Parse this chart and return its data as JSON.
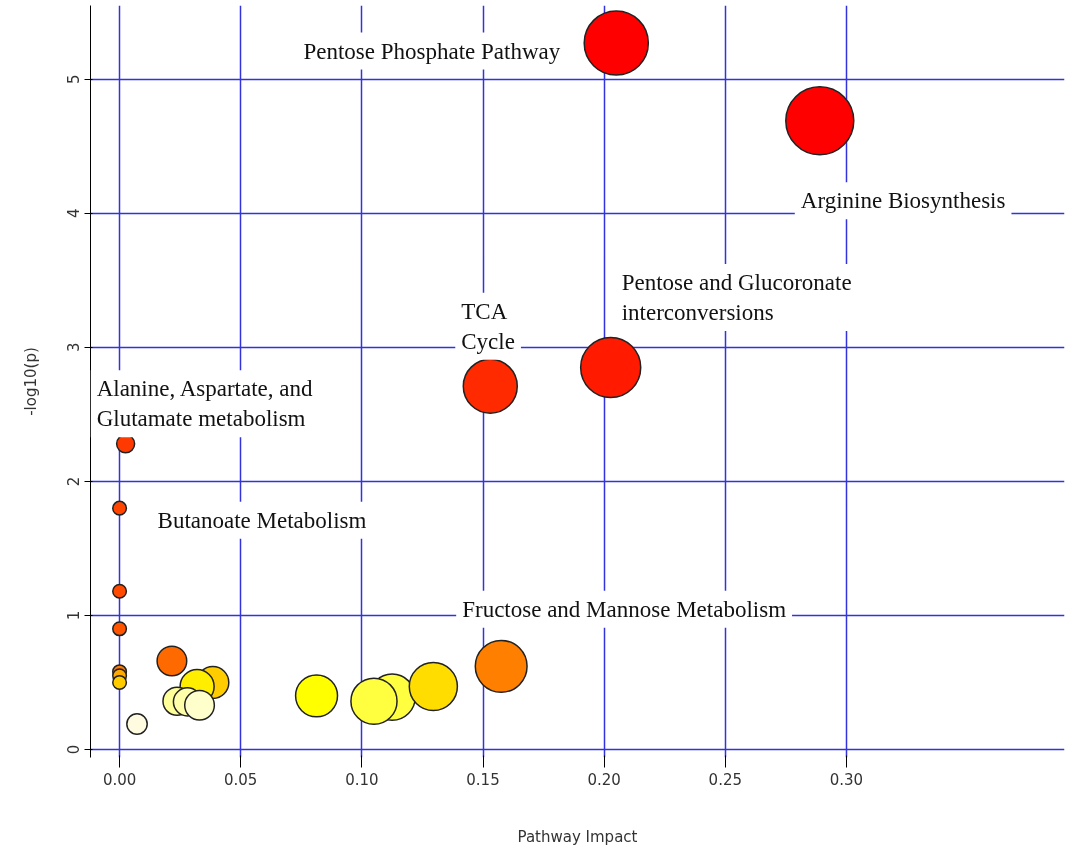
{
  "chart_data": {
    "type": "bubble",
    "xlabel": "Pathway Impact",
    "ylabel": "-log10(p)",
    "x": [
      0.205,
      0.289,
      0.2027,
      0.153,
      0.0025,
      0,
      0,
      0,
      0,
      0,
      0,
      0.0072,
      0.0216,
      0.0385,
      0.032,
      0.0237,
      0.028,
      0.033,
      0.0813,
      0.1125,
      0.105,
      0.1295,
      0.1575
    ],
    "values": [
      5.27,
      4.69,
      2.85,
      2.71,
      2.28,
      1.8,
      1.18,
      0.9,
      0.58,
      0.55,
      0.5,
      0.19,
      0.66,
      0.5,
      0.47,
      0.36,
      0.355,
      0.33,
      0.4,
      0.39,
      0.36,
      0.47,
      0.62
    ],
    "sizes": [
      0.89,
      1,
      0.78,
      0.63,
      0.07,
      0.04,
      0.04,
      0.04,
      0.04,
      0.04,
      0.04,
      0.09,
      0.19,
      0.22,
      0.25,
      0.17,
      0.17,
      0.19,
      0.38,
      0.46,
      0.46,
      0.5,
      0.58
    ],
    "colors": [
      "#ff0000",
      "#ff0000",
      "#ff1a00",
      "#ff2a00",
      "#ff3a00",
      "#ff4500",
      "#ff4a00",
      "#ff5500",
      "#ff7a00",
      "#ffaa00",
      "#ffcc00",
      "#fffbe0",
      "#ff6a00",
      "#ffcc00",
      "#ffee00",
      "#ffff99",
      "#ffffaa",
      "#ffffcc",
      "#ffff00",
      "#ffff40",
      "#ffff40",
      "#ffdd00",
      "#ff7f00"
    ],
    "xlim": [
      -0.012,
      0.39
    ],
    "ylim": [
      -0.06,
      5.55
    ],
    "xticks": [
      {
        "value": 0,
        "label": "0.00"
      },
      0.05,
      {
        "value": 0.1,
        "label": "0.10"
      },
      0.15,
      {
        "value": 0.2,
        "label": "0.20"
      },
      0.25,
      {
        "value": 0.3,
        "label": "0.30"
      }
    ],
    "yticks": [
      0,
      1,
      2,
      3,
      4,
      5
    ],
    "grid": true,
    "marker": "circle",
    "annotations": [
      {
        "text": "Pentose Phosphate Pathway",
        "x": 0.205,
        "y": 5.27
      },
      {
        "text": "Arginine Biosynthesis",
        "x": 0.289,
        "y": 4.69
      },
      {
        "text": "Pentose and Glucoronate\ninterconversions",
        "x": 0.2027,
        "y": 2.85
      },
      {
        "text": "TCA\nCycle",
        "x": 0.153,
        "y": 2.71
      },
      {
        "text": "Alanine, Aspartate, and\nGlutamate metabolism",
        "x": 0.0025,
        "y": 2.28
      },
      {
        "text": "Butanoate Metabolism",
        "x": 0,
        "y": 1.8
      },
      {
        "text": "Fructose and Mannose Metabolism",
        "x": 0.1575,
        "y": 0.62
      }
    ]
  }
}
